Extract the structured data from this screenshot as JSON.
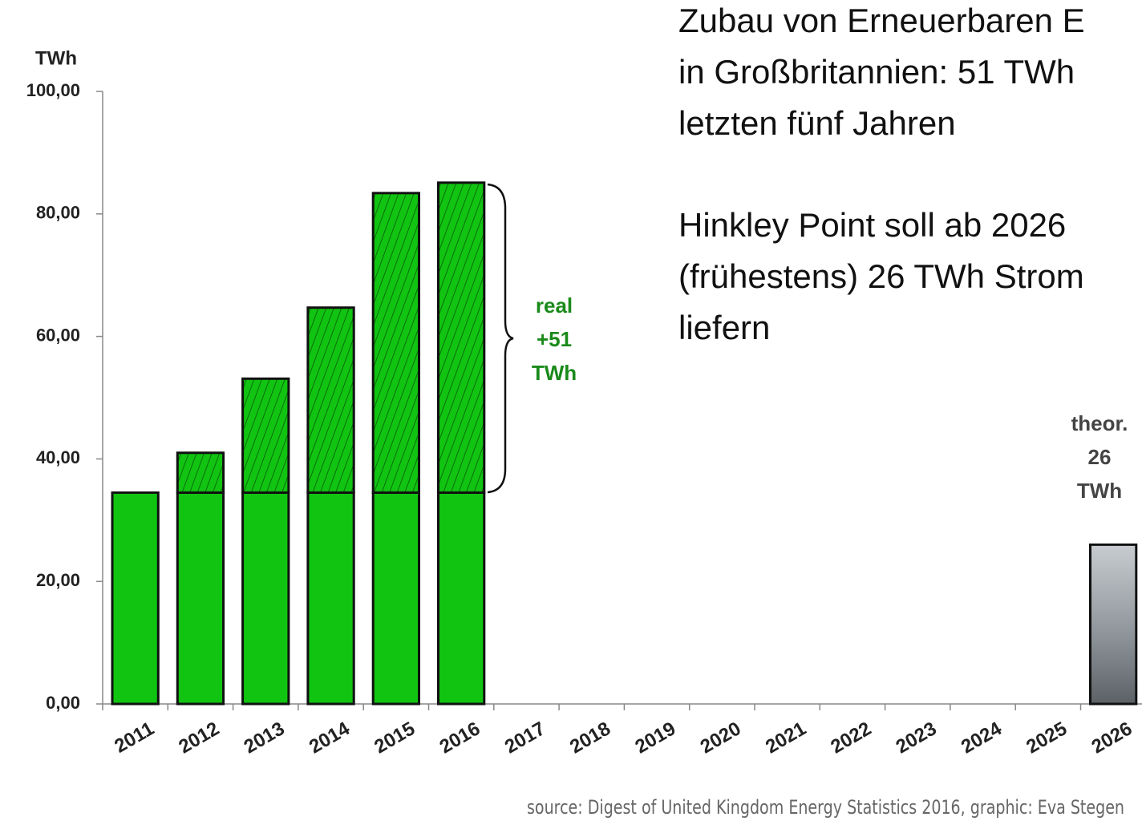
{
  "chart_data": {
    "type": "bar",
    "stacked": true,
    "ylabel": "TWh",
    "title_lines": [
      "Zubau von Erneuerbaren E",
      "in Großbritannien: 51 TWh",
      "letzten fünf Jahren"
    ],
    "subtitle_lines": [
      "Hinkley Point soll ab 2026",
      "(frühestens) 26 TWh Strom",
      "liefern"
    ],
    "categories": [
      "2011",
      "2012",
      "2013",
      "2014",
      "2015",
      "2016",
      "2017",
      "2018",
      "2019",
      "2020",
      "2021",
      "2022",
      "2023",
      "2024",
      "2025",
      "2026"
    ],
    "series": [
      {
        "color": "#11c411",
        "values": [
          34.5,
          34.5,
          34.5,
          34.5,
          34.5,
          34.5,
          null,
          null,
          null,
          null,
          null,
          null,
          null,
          null,
          null,
          null
        ]
      },
      {
        "color": "#11c411",
        "hatch": "#0a6e0a",
        "values": [
          null,
          6.5,
          18.6,
          30.2,
          48.9,
          50.6,
          null,
          null,
          null,
          null,
          null,
          null,
          null,
          null,
          null,
          null
        ]
      },
      {
        "color": "#9aa0a4",
        "values": [
          null,
          null,
          null,
          null,
          null,
          null,
          null,
          null,
          null,
          null,
          null,
          null,
          null,
          null,
          null,
          26
        ]
      }
    ],
    "ylim": [
      0,
      100
    ],
    "yticks": [
      {
        "value": 0,
        "label": "0,00"
      },
      {
        "value": 20,
        "label": "20,00"
      },
      {
        "value": 40,
        "label": "40,00"
      },
      {
        "value": 60,
        "label": "60,00"
      },
      {
        "value": 80,
        "label": "80,00"
      },
      {
        "value": 100,
        "label": "100,00"
      }
    ],
    "annotations": [
      {
        "lines": [
          "real",
          "+51",
          "TWh"
        ],
        "color": "#1a8a1a"
      },
      {
        "lines": [
          "theor.",
          "26",
          "TWh"
        ],
        "color": "#444444"
      }
    ],
    "source": "source: Digest of United Kingdom Energy Statistics 2016, graphic: Eva Stegen"
  }
}
